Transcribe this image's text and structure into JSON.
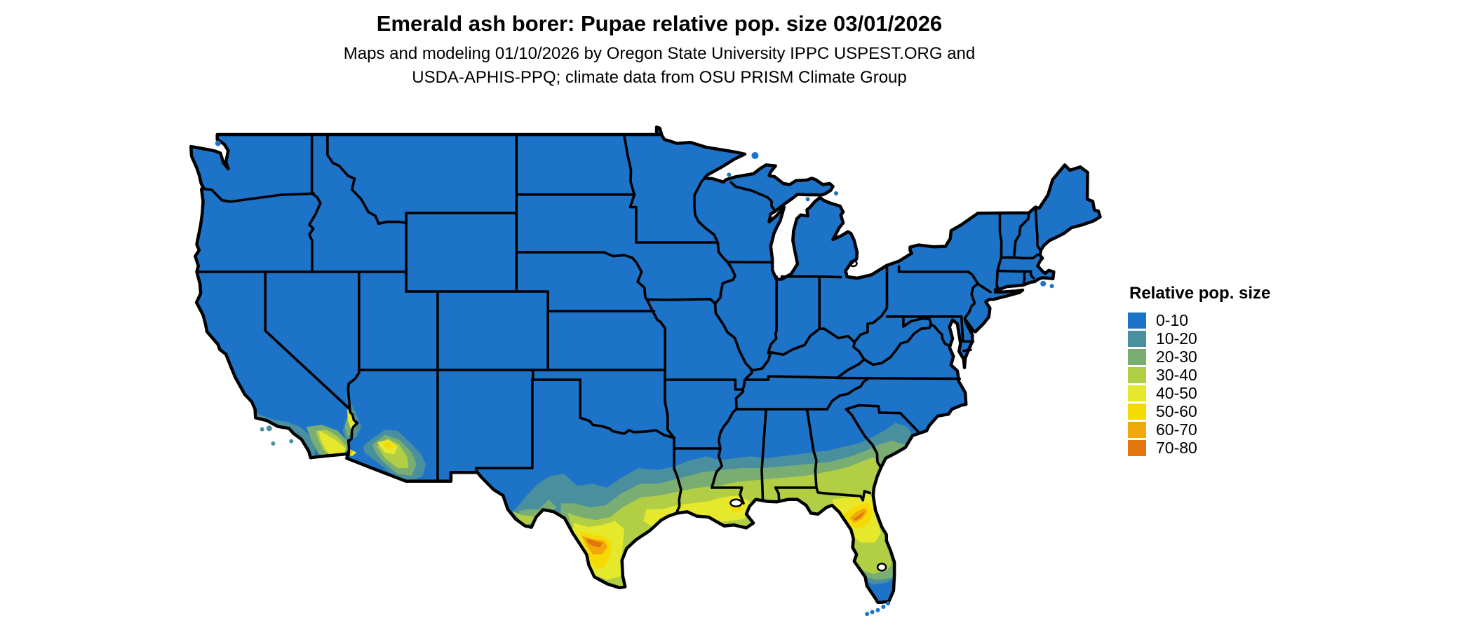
{
  "title": "Emerald ash borer: Pupae relative pop. size 03/01/2026",
  "subtitle_line1": "Maps and modeling 01/10/2026 by Oregon State University IPPC USPEST.ORG and",
  "subtitle_line2": "USDA-APHIS-PPQ; climate data from OSU PRISM Climate Group",
  "legend": {
    "title": "Relative pop. size",
    "items": [
      {
        "label": "0-10",
        "color": "#1c73c8"
      },
      {
        "label": "10-20",
        "color": "#4a8f9d"
      },
      {
        "label": "20-30",
        "color": "#7aad72"
      },
      {
        "label": "30-40",
        "color": "#b1ce45"
      },
      {
        "label": "40-50",
        "color": "#e6e92b"
      },
      {
        "label": "50-60",
        "color": "#f6da05"
      },
      {
        "label": "60-70",
        "color": "#f0a80a"
      },
      {
        "label": "70-80",
        "color": "#e2750e"
      }
    ]
  },
  "map": {
    "region": "Conterminous United States",
    "type": "raster choropleth of relative population size",
    "base_class": "0-10",
    "base_color": "#1c73c8",
    "border_color": "#000000",
    "no_data_color": "#ffffff",
    "hot_regions": [
      "southern Texas (Rio Grande valley, classes up to 70-80)",
      "Gulf Coast band from Texas through Georgia",
      "north-central Florida (classes up to 70-80)",
      "southern Arizona (Phoenix-Tucson-Yuma)",
      "southeastern California (Imperial and Coachella valleys)",
      "lower Colorado River valley"
    ]
  }
}
